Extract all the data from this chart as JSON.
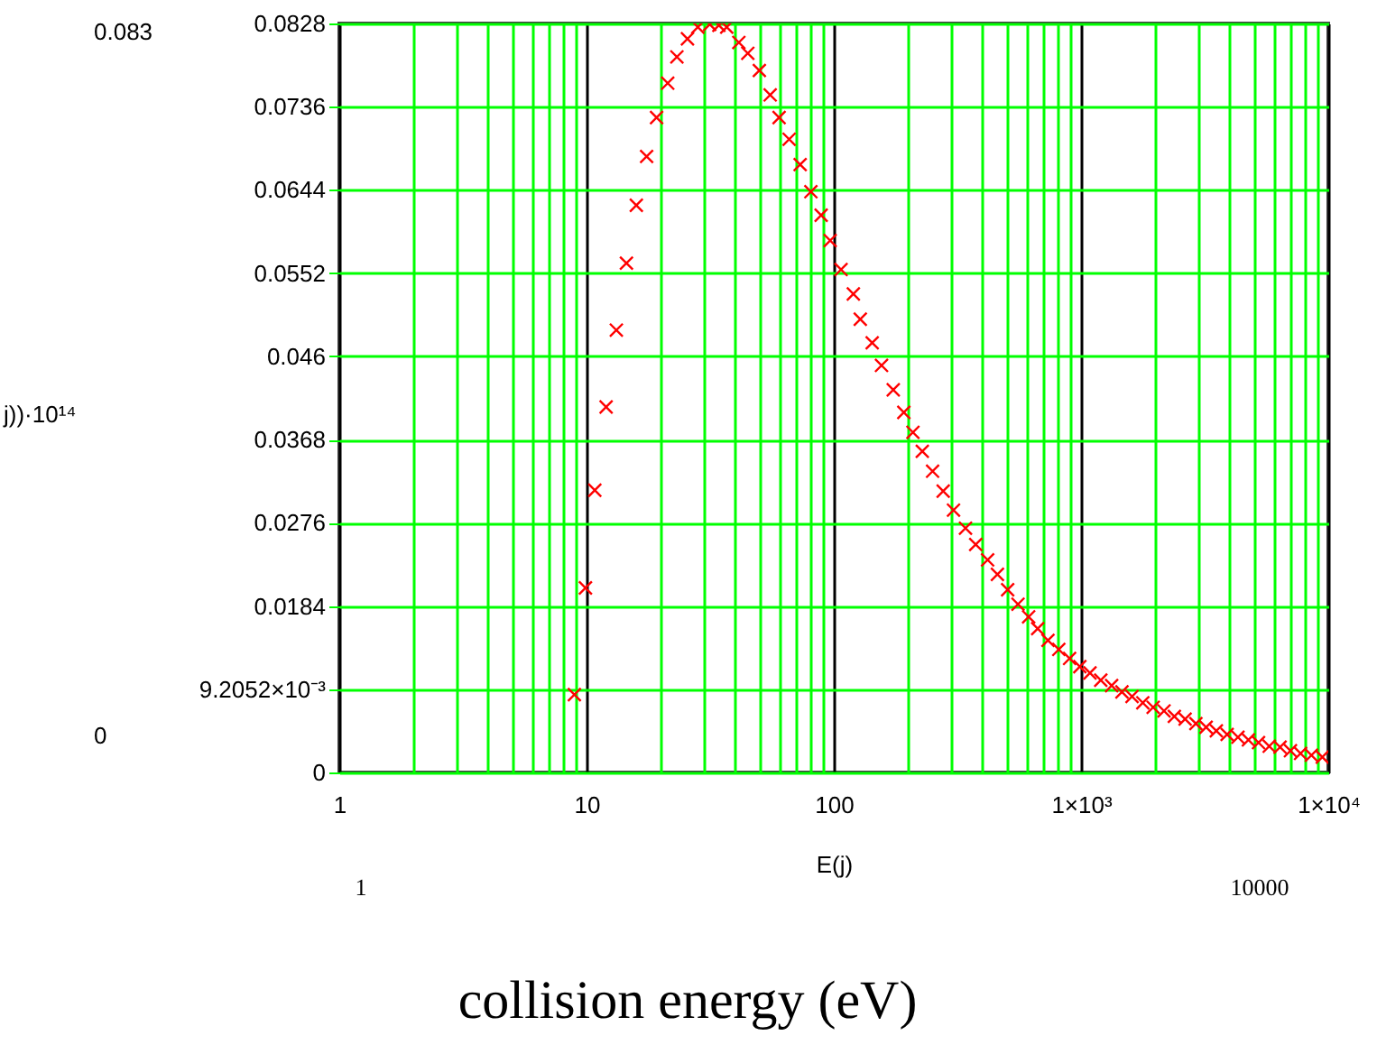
{
  "chart_data": {
    "type": "scatter",
    "xlabel": "E(j)",
    "annotations": [
      "0.083",
      "0",
      "1",
      "10000",
      "collision energy (eV)",
      "j))·10¹⁴"
    ],
    "series": [
      {
        "color": "#ff0000",
        "x": [
          8.93,
          9.9,
          10.8,
          12.0,
          13.2,
          14.5,
          15.9,
          17.5,
          19.2,
          21.3,
          23.2,
          25.6,
          28.2,
          31.5,
          34.3,
          36.9,
          41.3,
          44.9,
          50,
          55.3,
          60.1,
          66,
          73.1,
          80.8,
          88.9,
          96.7,
          107,
          120,
          128,
          143,
          156,
          174,
          192,
          209,
          228,
          251,
          277,
          305,
          341,
          375,
          419,
          459,
          505,
          556,
          614,
          668,
          735,
          813,
          899,
          989,
          1087,
          1202,
          1330,
          1464,
          1608,
          1778,
          1958,
          2166,
          2385,
          2636,
          2915,
          3206,
          3526,
          3899,
          4312,
          4753,
          5224,
          5770,
          6383,
          7031,
          7727,
          8549,
          9461
        ],
        "values": [
          0.0086,
          0.0204,
          0.0312,
          0.0404,
          0.0489,
          0.0563,
          0.0627,
          0.0681,
          0.0724,
          0.0762,
          0.0791,
          0.0811,
          0.0824,
          0.0827,
          0.0826,
          0.0824,
          0.0807,
          0.0795,
          0.0776,
          0.0749,
          0.0724,
          0.07,
          0.0672,
          0.0642,
          0.0616,
          0.0588,
          0.0556,
          0.0529,
          0.0501,
          0.0475,
          0.045,
          0.0423,
          0.0398,
          0.0376,
          0.0355,
          0.0333,
          0.0311,
          0.029,
          0.027,
          0.0252,
          0.0235,
          0.0219,
          0.0202,
          0.0186,
          0.0172,
          0.0159,
          0.0146,
          0.0136,
          0.0126,
          0.0117,
          0.011,
          0.0102,
          0.0096,
          0.0089,
          0.0084,
          0.0077,
          0.0072,
          0.0068,
          0.0062,
          0.0059,
          0.0054,
          0.005,
          0.0046,
          0.0042,
          0.0039,
          0.0036,
          0.0033,
          0.0029,
          0.0028,
          0.0024,
          0.0021,
          0.0019,
          0.0017
        ]
      }
    ],
    "marker": "cross",
    "log": "x",
    "grid": "xy",
    "xlim": [
      1,
      10000
    ],
    "xticks": [
      1,
      {
        "value": 2,
        "label": null
      },
      {
        "value": 3,
        "label": null
      },
      {
        "value": 4,
        "label": null
      },
      {
        "value": 5,
        "label": null
      },
      {
        "value": 6,
        "label": null
      },
      {
        "value": 7,
        "label": null
      },
      {
        "value": 8,
        "label": null
      },
      {
        "value": 9,
        "label": null
      },
      10,
      {
        "value": 20,
        "label": null
      },
      {
        "value": 30,
        "label": null
      },
      {
        "value": 40,
        "label": null
      },
      {
        "value": 50,
        "label": null
      },
      {
        "value": 60,
        "label": null
      },
      {
        "value": 70,
        "label": null
      },
      {
        "value": 80,
        "label": null
      },
      {
        "value": 90,
        "label": null
      },
      100,
      {
        "value": 200,
        "label": null
      },
      {
        "value": 300,
        "label": null
      },
      {
        "value": 400,
        "label": null
      },
      {
        "value": 500,
        "label": null
      },
      {
        "value": 600,
        "label": null
      },
      {
        "value": 700,
        "label": null
      },
      {
        "value": 800,
        "label": null
      },
      {
        "value": 900,
        "label": null
      },
      {
        "value": 1000,
        "label": "1×10³"
      },
      {
        "value": 2000,
        "label": null
      },
      {
        "value": 3000,
        "label": null
      },
      {
        "value": 4000,
        "label": null
      },
      {
        "value": 5000,
        "label": null
      },
      {
        "value": 6000,
        "label": null
      },
      {
        "value": 7000,
        "label": null
      },
      {
        "value": 8000,
        "label": null
      },
      {
        "value": 9000,
        "label": null
      },
      {
        "value": 10000,
        "label": "1×10⁴"
      }
    ],
    "ylim": [
      0,
      0.0828
    ],
    "yticks": [
      0,
      {
        "value": 0.0092052,
        "label": "9.2052×10⁻³"
      },
      0.0184,
      0.0276,
      0.0368,
      0.046,
      0.0552,
      0.0644,
      0.0736,
      0.0828
    ]
  }
}
